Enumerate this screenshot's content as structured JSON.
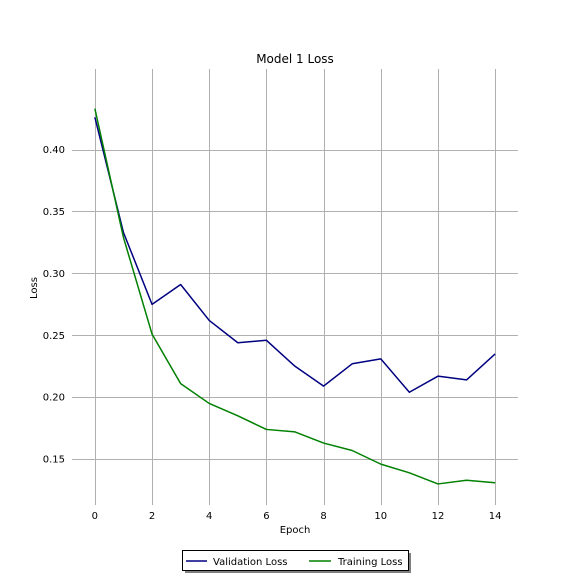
{
  "chart_data": {
    "type": "line",
    "title": "Model 1 Loss",
    "xlabel": "Epoch",
    "ylabel": "Loss",
    "x": [
      0,
      1,
      2,
      3,
      4,
      5,
      6,
      7,
      8,
      9,
      10,
      11,
      12,
      13,
      14
    ],
    "xticks": [
      "0",
      "2",
      "4",
      "6",
      "8",
      "10",
      "12",
      "14"
    ],
    "yticks": [
      "0.15",
      "0.20",
      "0.25",
      "0.30",
      "0.35",
      "0.40"
    ],
    "xlim": [
      -0.8,
      14.8
    ],
    "ylim": [
      0.113,
      0.465
    ],
    "grid": true,
    "legend_position": "bottom-center",
    "series": [
      {
        "name": "Validation Loss",
        "color": "#000080",
        "values": [
          0.426,
          0.333,
          0.275,
          0.291,
          0.262,
          0.244,
          0.246,
          0.225,
          0.209,
          0.227,
          0.231,
          0.204,
          0.217,
          0.214,
          0.235
        ]
      },
      {
        "name": "Training Loss",
        "color": "#008000",
        "values": [
          0.433,
          0.329,
          0.251,
          0.211,
          0.195,
          0.185,
          0.174,
          0.172,
          0.163,
          0.157,
          0.146,
          0.139,
          0.13,
          0.133,
          0.131
        ]
      }
    ]
  }
}
